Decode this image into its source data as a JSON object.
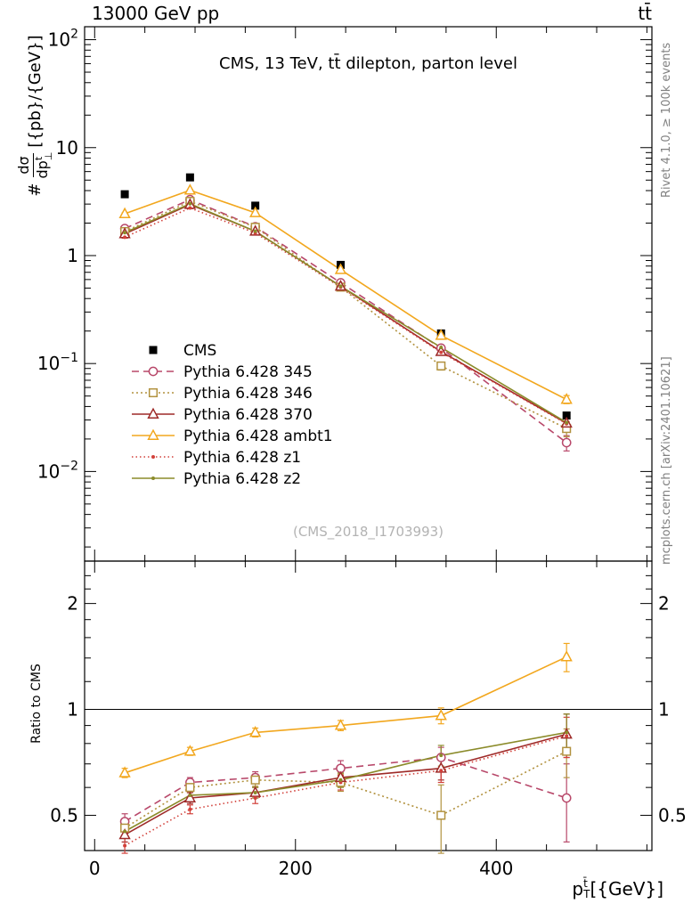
{
  "header": {
    "left": "13000 GeV pp",
    "right": "tt̄"
  },
  "panel_title": "CMS, 13 TeV, tt̄ dilepton, parton level",
  "watermark": "(CMS_2018_I1703993)",
  "side_notes": {
    "top_right": "Rivet 4.1.0, ≥ 100k events",
    "bottom_right": "mcplots.cern.ch [arXiv:2401.10621]"
  },
  "x_axis": {
    "label": {
      "base": "p",
      "sub": "T",
      "sup": "t̄",
      "units": "[{GeV}]"
    },
    "ticks": [
      {
        "v": 0,
        "label": "0"
      },
      {
        "v": 200,
        "label": "200"
      },
      {
        "v": 400,
        "label": "400"
      }
    ]
  },
  "y_axis_main": {
    "label": {
      "prefix": "#",
      "num": "dσ",
      "den_base": "dp",
      "den_sub": "⊥",
      "den_sup": "t̄",
      "units": "[{pb}/{GeV}]"
    },
    "ticks": [
      {
        "v": 100,
        "base": "10",
        "exp": "2"
      },
      {
        "v": 10,
        "base": "10"
      },
      {
        "v": 1,
        "base": "1"
      },
      {
        "v": 0.1,
        "base": "10",
        "exp": "−1"
      },
      {
        "v": 0.01,
        "base": "10",
        "exp": "−2"
      }
    ]
  },
  "y_axis_ratio": {
    "label": "Ratio to CMS",
    "ticks": [
      {
        "v": 2,
        "label": "2"
      },
      {
        "v": 1,
        "label": "1"
      },
      {
        "v": 0.5,
        "label": "0.5"
      }
    ]
  },
  "chart_data": {
    "type": "line",
    "title": "CMS, 13 TeV, tt̄ dilepton, parton level",
    "xlabel": "p_T^t̄ [{GeV}]",
    "x": [
      30,
      95,
      160,
      245,
      345,
      470
    ],
    "x_range": [
      -10,
      555
    ],
    "legend_position": "middle-left",
    "main": {
      "ylog": true,
      "ylabel": "#dσ/dp_⊥^t̄ [{pb}/{GeV}]",
      "ylim_exp": [
        -2.83,
        2.12
      ],
      "series": [
        {
          "name": "CMS",
          "color": "#000000",
          "marker": "square-filled",
          "line": "none",
          "values": [
            3.7,
            5.3,
            2.9,
            0.82,
            0.19,
            0.033
          ],
          "yerr": [
            0,
            0,
            0,
            0,
            0,
            0
          ]
        },
        {
          "name": "Pythia 6.428 345",
          "color": "#b8486a",
          "marker": "circle-open",
          "line": "dash",
          "values": [
            1.78,
            3.3,
            1.85,
            0.56,
            0.139,
            0.0185
          ],
          "yerr": [
            0.04,
            0.05,
            0.03,
            0.012,
            0.006,
            0.003
          ]
        },
        {
          "name": "Pythia 6.428 346",
          "color": "#b2923f",
          "marker": "square-open",
          "line": "dot",
          "values": [
            1.67,
            3.18,
            1.83,
            0.51,
            0.095,
            0.025
          ],
          "yerr": [
            0.04,
            0.05,
            0.03,
            0.012,
            0.008,
            0.004
          ]
        },
        {
          "name": "Pythia 6.428 370",
          "color": "#9e2a28",
          "marker": "triangle-open",
          "line": "solid",
          "values": [
            1.59,
            2.97,
            1.68,
            0.52,
            0.129,
            0.028
          ],
          "yerr": [
            0.04,
            0.05,
            0.03,
            0.012,
            0.006,
            0.003
          ]
        },
        {
          "name": "Pythia 6.428 ambt1",
          "color": "#f2a71e",
          "marker": "triangle-open",
          "line": "solid",
          "values": [
            2.44,
            4.03,
            2.49,
            0.74,
            0.182,
            0.0465
          ],
          "yerr": [
            0.05,
            0.06,
            0.04,
            0.015,
            0.008,
            0.004
          ]
        },
        {
          "name": "Pythia 6.428 z1",
          "color": "#d2403a",
          "marker": "dot",
          "line": "dot-fine",
          "values": [
            1.48,
            2.76,
            1.62,
            0.51,
            0.127,
            0.0277
          ],
          "yerr": [
            0.03,
            0.04,
            0.03,
            0.01,
            0.006,
            0.003
          ]
        },
        {
          "name": "Pythia 6.428 z2",
          "color": "#8b8b2a",
          "marker": "dot",
          "line": "solid",
          "values": [
            1.63,
            3.02,
            1.68,
            0.52,
            0.141,
            0.0284
          ],
          "yerr": [
            0.03,
            0.04,
            0.03,
            0.01,
            0.006,
            0.003
          ]
        }
      ]
    },
    "ratio": {
      "ylog": true,
      "ylabel": "Ratio to CMS",
      "ylim": [
        0.397,
        2.64
      ],
      "ref_line": 1,
      "series": [
        {
          "name": "Pythia 6.428 345",
          "color": "#b8486a",
          "marker": "circle-open",
          "line": "dash",
          "values": [
            0.48,
            0.62,
            0.64,
            0.68,
            0.73,
            0.56
          ],
          "yerr": [
            0.025,
            0.02,
            0.025,
            0.035,
            0.05,
            0.14
          ]
        },
        {
          "name": "Pythia 6.428 346",
          "color": "#b2923f",
          "marker": "square-open",
          "line": "dot",
          "values": [
            0.46,
            0.6,
            0.63,
            0.62,
            0.5,
            0.76
          ],
          "yerr": [
            0.025,
            0.02,
            0.025,
            0.035,
            0.11,
            0.12
          ]
        },
        {
          "name": "Pythia 6.428 370",
          "color": "#9e2a28",
          "marker": "triangle-open",
          "line": "solid",
          "values": [
            0.44,
            0.56,
            0.58,
            0.64,
            0.68,
            0.85
          ],
          "yerr": [
            0.02,
            0.02,
            0.02,
            0.03,
            0.05,
            0.12
          ]
        },
        {
          "name": "Pythia 6.428 ambt1",
          "color": "#f2a71e",
          "marker": "triangle-open",
          "line": "solid",
          "values": [
            0.66,
            0.76,
            0.86,
            0.9,
            0.96,
            1.41
          ],
          "yerr": [
            0.02,
            0.02,
            0.025,
            0.03,
            0.05,
            0.13
          ]
        },
        {
          "name": "Pythia 6.428 z1",
          "color": "#d2403a",
          "marker": "dot",
          "line": "dot-fine",
          "values": [
            0.41,
            0.52,
            0.56,
            0.62,
            0.67,
            0.84
          ],
          "yerr": [
            0.02,
            0.015,
            0.02,
            0.03,
            0.05,
            0.11
          ]
        },
        {
          "name": "Pythia 6.428 z2",
          "color": "#8b8b2a",
          "marker": "dot",
          "line": "solid",
          "values": [
            0.45,
            0.57,
            0.58,
            0.63,
            0.74,
            0.86
          ],
          "yerr": [
            0.02,
            0.015,
            0.02,
            0.03,
            0.05,
            0.11
          ]
        }
      ]
    }
  }
}
